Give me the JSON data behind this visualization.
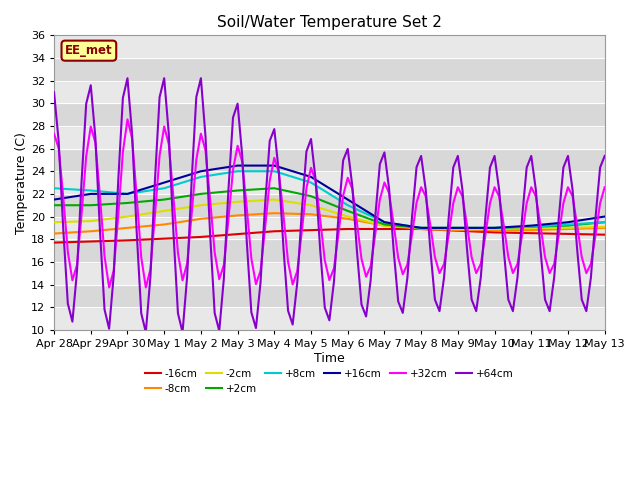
{
  "title": "Soil/Water Temperature Set 2",
  "xlabel": "Time",
  "ylabel": "Temperature (C)",
  "ylim": [
    10,
    36
  ],
  "annotation_text": "EE_met",
  "annotation_bg": "#FFFF99",
  "annotation_border": "#8B0000",
  "background_color": "#ffffff",
  "band_colors": [
    "#e8e8e8",
    "#d8d8d8"
  ],
  "xtick_labels": [
    "Apr 28",
    "Apr 29",
    "Apr 30",
    "May 1",
    "May 2",
    "May 3",
    "May 4",
    "May 5",
    "May 6",
    "May 7",
    "May 8",
    "May 9",
    "May 10",
    "May 11",
    "May 12",
    "May 13"
  ],
  "series_order": [
    "-16cm",
    "-8cm",
    "-2cm",
    "+2cm",
    "+8cm",
    "+16cm",
    "+32cm",
    "+64cm"
  ],
  "legend_ncol": 6,
  "series": {
    "-16cm": {
      "color": "#dd0000",
      "lw": 1.5
    },
    "-8cm": {
      "color": "#ff8800",
      "lw": 1.5
    },
    "-2cm": {
      "color": "#dddd00",
      "lw": 1.5
    },
    "+2cm": {
      "color": "#00aa00",
      "lw": 1.5
    },
    "+8cm": {
      "color": "#00cccc",
      "lw": 1.5
    },
    "+16cm": {
      "color": "#000099",
      "lw": 1.5
    },
    "+32cm": {
      "color": "#ff00ff",
      "lw": 1.5
    },
    "+64cm": {
      "color": "#8800cc",
      "lw": 1.5
    }
  }
}
